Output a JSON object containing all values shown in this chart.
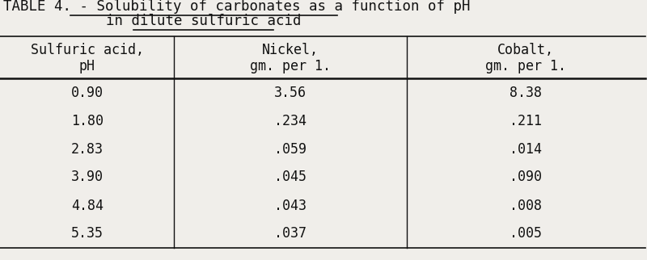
{
  "title_prefix": "TABLE 4. - ",
  "title_underlined": "Solubility of carbonates as a function of pH",
  "title_line2": "in dilute sulfuric acid",
  "col_headers": [
    [
      "Sulfuric acid,",
      "pH"
    ],
    [
      "Nickel,",
      "gm. per 1."
    ],
    [
      "Cobalt,",
      "gm. per 1."
    ]
  ],
  "rows": [
    [
      "0.90",
      "3.56",
      "8.38"
    ],
    [
      "1.80",
      ".234",
      ".211"
    ],
    [
      "2.83",
      ".059",
      ".014"
    ],
    [
      "3.90",
      ".045",
      ".090"
    ],
    [
      "4.84",
      ".043",
      ".008"
    ],
    [
      "5.35",
      ".037",
      ".005"
    ]
  ],
  "bg_color": "#f0eeea",
  "text_color": "#111111",
  "font_family": "monospace",
  "title_fontsize": 12.5,
  "header_fontsize": 12,
  "data_fontsize": 12,
  "fig_width": 8.0,
  "fig_height": 3.22,
  "dpi": 100
}
